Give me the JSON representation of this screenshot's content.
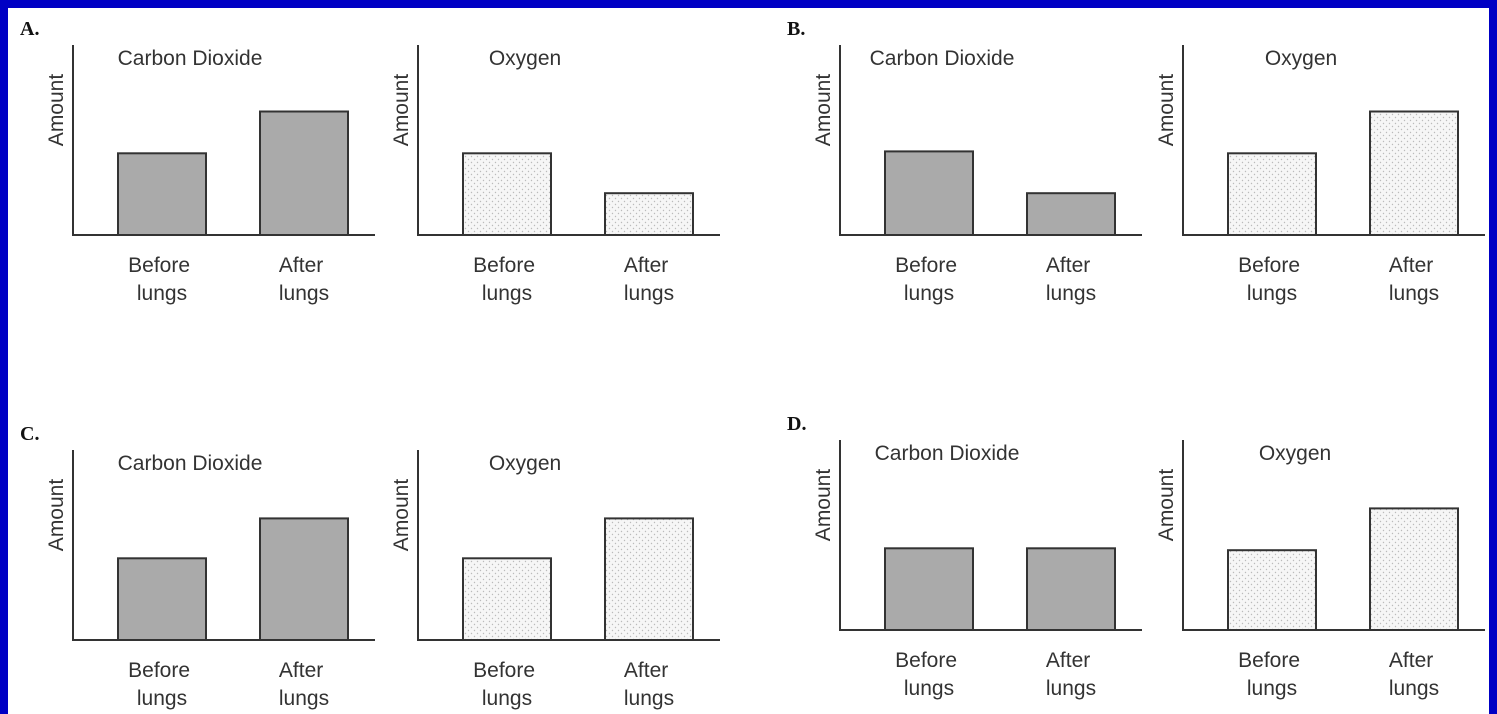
{
  "chart_data": [
    {
      "type": "bar",
      "panel": "A.",
      "title": "Carbon Dioxide",
      "ylabel": "Amount",
      "categories": [
        "Before lungs",
        "After lungs"
      ],
      "values": [
        4.3,
        6.5
      ],
      "color": "#aaaaaa",
      "ylim": [
        0,
        10
      ]
    },
    {
      "type": "bar",
      "title": "Oxygen",
      "ylabel": "Amount",
      "categories": [
        "Before lungs",
        "After lungs"
      ],
      "values": [
        4.3,
        2.2
      ],
      "color": "#f6f6f6",
      "pattern": "dotted",
      "ylim": [
        0,
        10
      ]
    },
    {
      "type": "bar",
      "panel": "B.",
      "title": "Carbon Dioxide",
      "ylabel": "Amount",
      "categories": [
        "Before lungs",
        "After lungs"
      ],
      "values": [
        4.4,
        2.2
      ],
      "color": "#aaaaaa",
      "ylim": [
        0,
        10
      ]
    },
    {
      "type": "bar",
      "title": "Oxygen",
      "ylabel": "Amount",
      "categories": [
        "Before lungs",
        "After lungs"
      ],
      "values": [
        4.3,
        6.5
      ],
      "color": "#f6f6f6",
      "pattern": "dotted",
      "ylim": [
        0,
        10
      ]
    },
    {
      "type": "bar",
      "panel": "C.",
      "title": "Carbon Dioxide",
      "ylabel": "Amount",
      "categories": [
        "Before lungs",
        "After lungs"
      ],
      "values": [
        4.3,
        6.4
      ],
      "color": "#aaaaaa",
      "ylim": [
        0,
        10
      ]
    },
    {
      "type": "bar",
      "title": "Oxygen",
      "ylabel": "Amount",
      "categories": [
        "Before lungs",
        "After lungs"
      ],
      "values": [
        4.3,
        6.4
      ],
      "color": "#f6f6f6",
      "pattern": "dotted",
      "ylim": [
        0,
        10
      ]
    },
    {
      "type": "bar",
      "panel": "D.",
      "title": "Carbon Dioxide",
      "ylabel": "Amount",
      "categories": [
        "Before lungs",
        "After lungs"
      ],
      "values": [
        4.3,
        4.3
      ],
      "color": "#aaaaaa",
      "ylim": [
        0,
        10
      ]
    },
    {
      "type": "bar",
      "title": "Oxygen",
      "ylabel": "Amount",
      "categories": [
        "Before lungs",
        "After lungs"
      ],
      "values": [
        4.2,
        6.4
      ],
      "color": "#f6f6f6",
      "pattern": "dotted",
      "ylim": [
        0,
        10
      ]
    }
  ]
}
